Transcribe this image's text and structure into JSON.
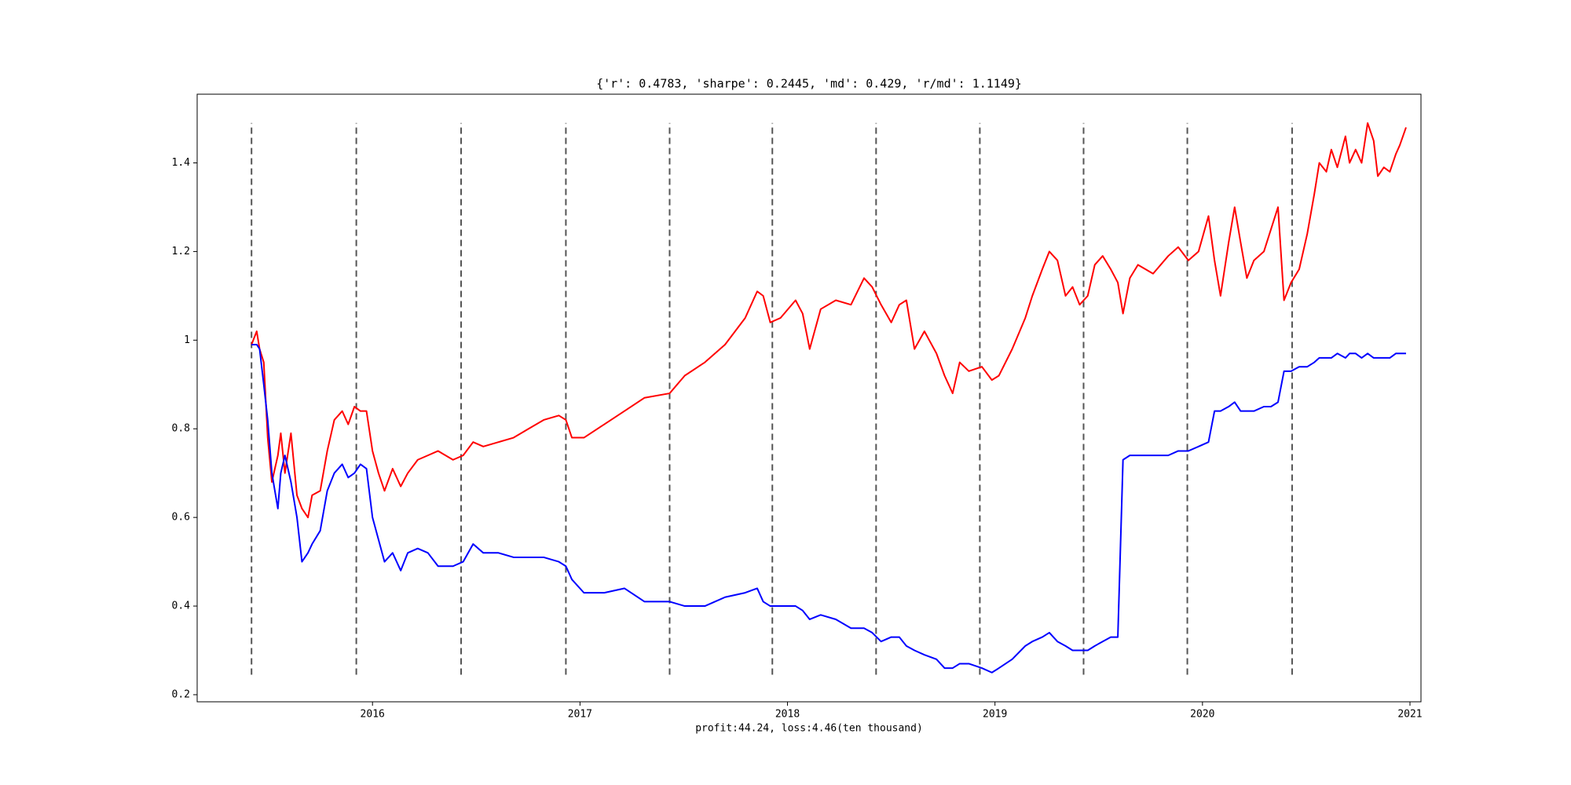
{
  "chart_data": {
    "type": "line",
    "title": "{'r': 0.4783, 'sharpe': 0.2445, 'md': 0.429, 'r/md': 1.1149}",
    "x_label": "profit:44.24, loss:4.46(ten thousand)",
    "x": [
      2015.417,
      2015.442,
      2015.456,
      2015.476,
      2015.495,
      2015.515,
      2015.544,
      2015.558,
      2015.578,
      2015.607,
      2015.636,
      2015.66,
      2015.689,
      2015.709,
      2015.748,
      2015.782,
      2015.816,
      2015.854,
      2015.883,
      2015.913,
      2015.942,
      2015.971,
      2016.0,
      2016.029,
      2016.058,
      2016.097,
      2016.136,
      2016.17,
      2016.218,
      2016.267,
      2016.316,
      2016.388,
      2016.437,
      2016.485,
      2016.534,
      2016.607,
      2016.68,
      2016.752,
      2016.825,
      2016.898,
      2016.932,
      2016.961,
      2017.019,
      2017.117,
      2017.214,
      2017.311,
      2017.432,
      2017.505,
      2017.602,
      2017.699,
      2017.796,
      2017.854,
      2017.883,
      2017.917,
      2017.966,
      2018.039,
      2018.073,
      2018.107,
      2018.16,
      2018.233,
      2018.306,
      2018.369,
      2018.408,
      2018.451,
      2018.5,
      2018.539,
      2018.573,
      2018.612,
      2018.66,
      2018.718,
      2018.757,
      2018.796,
      2018.83,
      2018.874,
      2018.937,
      2018.985,
      2019.019,
      2019.083,
      2019.146,
      2019.18,
      2019.228,
      2019.262,
      2019.301,
      2019.34,
      2019.374,
      2019.408,
      2019.447,
      2019.481,
      2019.519,
      2019.558,
      2019.592,
      2019.617,
      2019.65,
      2019.689,
      2019.762,
      2019.835,
      2019.883,
      2019.932,
      2019.981,
      2020.029,
      2020.058,
      2020.087,
      2020.126,
      2020.155,
      2020.184,
      2020.214,
      2020.248,
      2020.296,
      2020.33,
      2020.364,
      2020.393,
      2020.427,
      2020.466,
      2020.505,
      2020.539,
      2020.563,
      2020.597,
      2020.621,
      2020.65,
      2020.689,
      2020.709,
      2020.738,
      2020.767,
      2020.796,
      2020.825,
      2020.845,
      2020.874,
      2020.903,
      2020.932,
      2020.951,
      2020.981
    ],
    "series": [
      {
        "color": "#ff0000",
        "values": [
          0.99,
          1.02,
          0.98,
          0.95,
          0.78,
          0.68,
          0.74,
          0.79,
          0.7,
          0.79,
          0.65,
          0.62,
          0.6,
          0.65,
          0.66,
          0.75,
          0.82,
          0.84,
          0.81,
          0.85,
          0.84,
          0.84,
          0.75,
          0.7,
          0.66,
          0.71,
          0.67,
          0.7,
          0.73,
          0.74,
          0.75,
          0.73,
          0.74,
          0.77,
          0.76,
          0.77,
          0.78,
          0.8,
          0.82,
          0.83,
          0.82,
          0.78,
          0.78,
          0.81,
          0.84,
          0.87,
          0.88,
          0.92,
          0.95,
          0.99,
          1.05,
          1.11,
          1.1,
          1.04,
          1.05,
          1.09,
          1.06,
          0.98,
          1.07,
          1.09,
          1.08,
          1.14,
          1.12,
          1.08,
          1.04,
          1.08,
          1.09,
          0.98,
          1.02,
          0.97,
          0.92,
          0.88,
          0.95,
          0.93,
          0.94,
          0.91,
          0.92,
          0.98,
          1.05,
          1.1,
          1.16,
          1.2,
          1.18,
          1.1,
          1.12,
          1.08,
          1.1,
          1.17,
          1.19,
          1.16,
          1.13,
          1.06,
          1.14,
          1.17,
          1.15,
          1.19,
          1.21,
          1.18,
          1.2,
          1.28,
          1.18,
          1.1,
          1.22,
          1.3,
          1.22,
          1.14,
          1.18,
          1.2,
          1.25,
          1.3,
          1.09,
          1.13,
          1.16,
          1.24,
          1.33,
          1.4,
          1.38,
          1.43,
          1.39,
          1.46,
          1.4,
          1.43,
          1.4,
          1.49,
          1.45,
          1.37,
          1.39,
          1.38,
          1.42,
          1.44,
          1.48
        ]
      },
      {
        "color": "#0000ff",
        "values": [
          0.99,
          0.99,
          0.98,
          0.9,
          0.82,
          0.7,
          0.62,
          0.7,
          0.74,
          0.68,
          0.6,
          0.5,
          0.52,
          0.54,
          0.57,
          0.66,
          0.7,
          0.72,
          0.69,
          0.7,
          0.72,
          0.71,
          0.6,
          0.55,
          0.5,
          0.52,
          0.48,
          0.52,
          0.53,
          0.52,
          0.49,
          0.49,
          0.5,
          0.54,
          0.52,
          0.52,
          0.51,
          0.51,
          0.51,
          0.5,
          0.49,
          0.46,
          0.43,
          0.43,
          0.44,
          0.41,
          0.41,
          0.4,
          0.4,
          0.42,
          0.43,
          0.44,
          0.41,
          0.4,
          0.4,
          0.4,
          0.39,
          0.37,
          0.38,
          0.37,
          0.35,
          0.35,
          0.34,
          0.32,
          0.33,
          0.33,
          0.31,
          0.3,
          0.29,
          0.28,
          0.26,
          0.26,
          0.27,
          0.27,
          0.26,
          0.25,
          0.26,
          0.28,
          0.31,
          0.32,
          0.33,
          0.34,
          0.32,
          0.31,
          0.3,
          0.3,
          0.3,
          0.31,
          0.32,
          0.33,
          0.33,
          0.73,
          0.74,
          0.74,
          0.74,
          0.74,
          0.75,
          0.75,
          0.76,
          0.77,
          0.84,
          0.84,
          0.85,
          0.86,
          0.84,
          0.84,
          0.84,
          0.85,
          0.85,
          0.86,
          0.93,
          0.93,
          0.94,
          0.94,
          0.95,
          0.96,
          0.96,
          0.96,
          0.97,
          0.96,
          0.97,
          0.97,
          0.96,
          0.97,
          0.96,
          0.96,
          0.96,
          0.96,
          0.97,
          0.97,
          0.97
        ]
      }
    ],
    "vlines": {
      "x": [
        2015.417,
        2015.922,
        2016.427,
        2016.932,
        2017.432,
        2017.927,
        2018.427,
        2018.927,
        2019.427,
        2019.927,
        2020.432
      ],
      "ymin": 0.245,
      "ymax": 1.49,
      "color": "#555555"
    },
    "xlim": [
      2015.155,
      2021.053
    ],
    "xticks": [
      2016,
      2017,
      2018,
      2019,
      2020,
      2021
    ],
    "ylim": [
      0.184,
      1.555
    ],
    "yticks": [
      0.2,
      0.4,
      0.6,
      0.8,
      1.0,
      1.2,
      1.4
    ],
    "grid": false
  }
}
